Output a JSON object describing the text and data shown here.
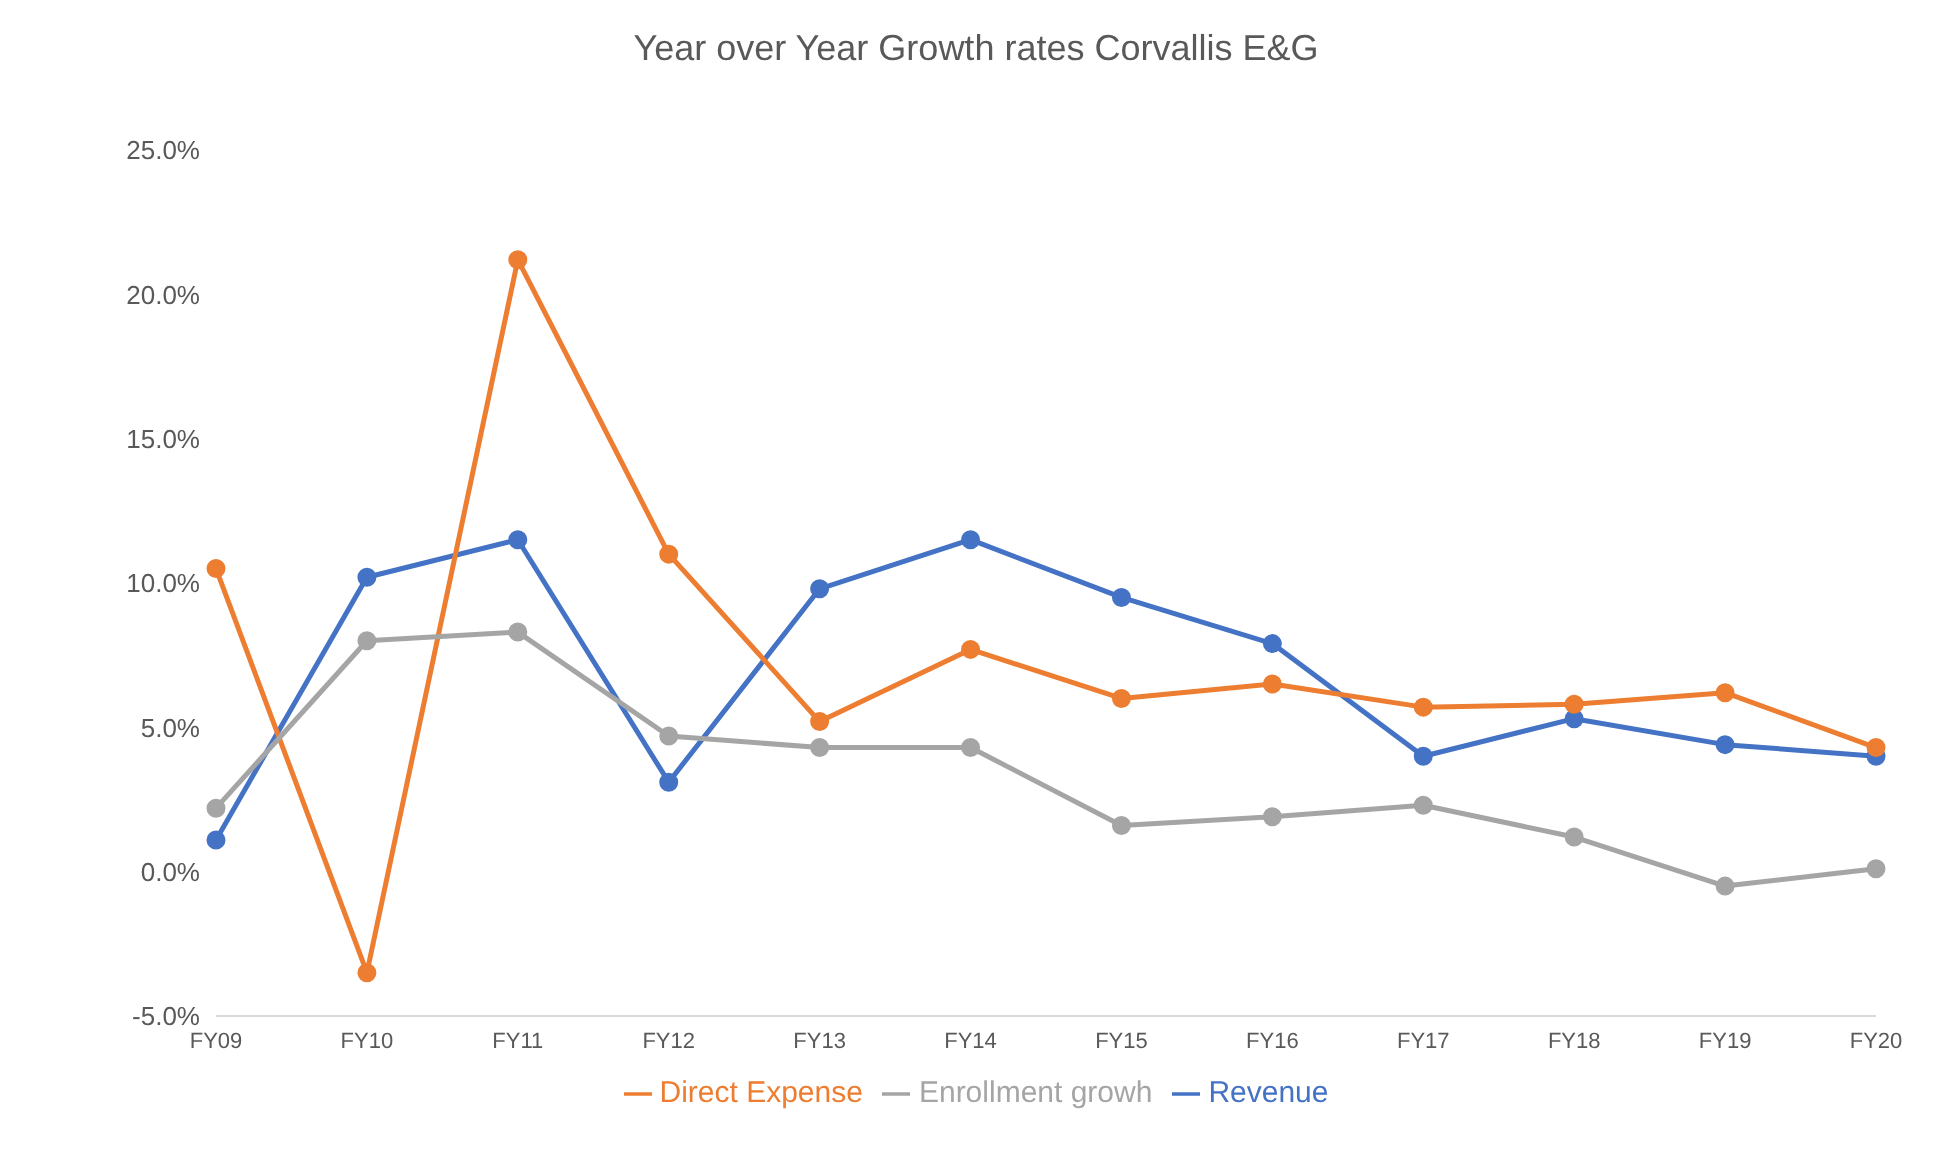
{
  "chart_data": {
    "type": "line",
    "title": "Year over Year Growth rates Corvallis E&G",
    "categories": [
      "FY09",
      "FY10",
      "FY11",
      "FY12",
      "FY13",
      "FY14",
      "FY15",
      "FY16",
      "FY17",
      "FY18",
      "FY19",
      "FY20"
    ],
    "series": [
      {
        "name": "Revenue",
        "color": "#4472c4",
        "values": [
          1.1,
          10.2,
          11.5,
          3.1,
          9.8,
          11.5,
          9.5,
          7.9,
          4.0,
          5.3,
          4.4,
          4.0
        ]
      },
      {
        "name": "Direct Expense",
        "color": "#ed7d31",
        "values": [
          10.5,
          -3.5,
          21.2,
          11.0,
          5.2,
          7.7,
          6.0,
          6.5,
          5.7,
          5.8,
          6.2,
          4.3
        ]
      },
      {
        "name": "Enrollment growh",
        "color": "#a5a5a5",
        "values": [
          2.2,
          8.0,
          8.3,
          4.7,
          4.3,
          4.3,
          1.6,
          1.9,
          2.3,
          1.2,
          -0.5,
          0.1
        ]
      }
    ],
    "ylim": [
      -5,
      25
    ],
    "yticks": [
      {
        "value": -5,
        "label": "-5.0%"
      },
      {
        "value": 0,
        "label": "0.0%"
      },
      {
        "value": 5,
        "label": "5.0%"
      },
      {
        "value": 10,
        "label": "10.0%"
      },
      {
        "value": 15,
        "label": "15.0%"
      },
      {
        "value": 20,
        "label": "20.0%"
      },
      {
        "value": 25,
        "label": "25.0%"
      }
    ],
    "grid": false,
    "legend": "bottom",
    "marker": "circle",
    "line_style": "solid"
  }
}
